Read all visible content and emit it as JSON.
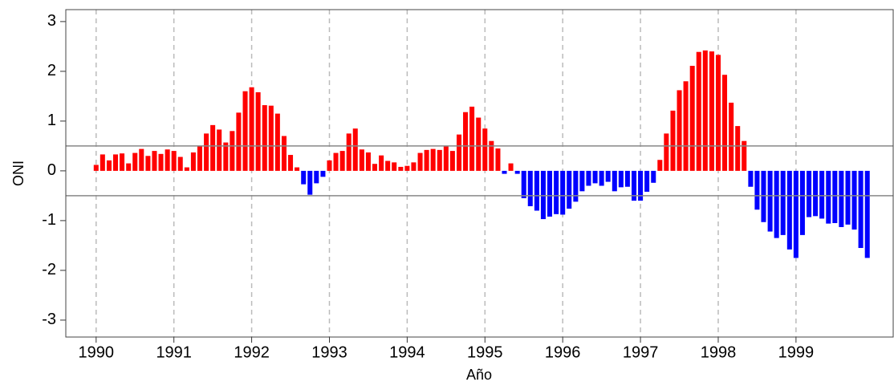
{
  "chart_data": {
    "type": "bar",
    "xlabel": "Año",
    "ylabel": "ONI",
    "x": [
      1990,
      1990.083,
      1990.167,
      1990.25,
      1990.333,
      1990.417,
      1990.5,
      1990.583,
      1990.667,
      1990.75,
      1990.833,
      1990.917,
      1991,
      1991.083,
      1991.167,
      1991.25,
      1991.333,
      1991.417,
      1991.5,
      1991.583,
      1991.667,
      1991.75,
      1991.833,
      1991.917,
      1992,
      1992.083,
      1992.167,
      1992.25,
      1992.333,
      1992.417,
      1992.5,
      1992.583,
      1992.667,
      1992.75,
      1992.833,
      1992.917,
      1993,
      1993.083,
      1993.167,
      1993.25,
      1993.333,
      1993.417,
      1993.5,
      1993.583,
      1993.667,
      1993.75,
      1993.833,
      1993.917,
      1994,
      1994.083,
      1994.167,
      1994.25,
      1994.333,
      1994.417,
      1994.5,
      1994.583,
      1994.667,
      1994.75,
      1994.833,
      1994.917,
      1995,
      1995.083,
      1995.167,
      1995.25,
      1995.333,
      1995.417,
      1995.5,
      1995.583,
      1995.667,
      1995.75,
      1995.833,
      1995.917,
      1996,
      1996.083,
      1996.167,
      1996.25,
      1996.333,
      1996.417,
      1996.5,
      1996.583,
      1996.667,
      1996.75,
      1996.833,
      1996.917,
      1997,
      1997.083,
      1997.167,
      1997.25,
      1997.333,
      1997.417,
      1997.5,
      1997.583,
      1997.667,
      1997.75,
      1997.833,
      1997.917,
      1998,
      1998.083,
      1998.167,
      1998.25,
      1998.333,
      1998.417,
      1998.5,
      1998.583,
      1998.667,
      1998.75,
      1998.833,
      1998.917,
      1999,
      1999.083,
      1999.167,
      1999.25,
      1999.333,
      1999.417,
      1999.5,
      1999.583,
      1999.667,
      1999.75,
      1999.833,
      1999.917
    ],
    "values": [
      0.12,
      0.33,
      0.21,
      0.33,
      0.35,
      0.15,
      0.36,
      0.44,
      0.3,
      0.4,
      0.34,
      0.43,
      0.4,
      0.28,
      0.07,
      0.37,
      0.5,
      0.75,
      0.92,
      0.83,
      0.57,
      0.8,
      1.17,
      1.6,
      1.68,
      1.58,
      1.32,
      1.31,
      1.15,
      0.7,
      0.32,
      0.07,
      -0.27,
      -0.48,
      -0.25,
      -0.12,
      0.21,
      0.36,
      0.4,
      0.75,
      0.85,
      0.43,
      0.37,
      0.14,
      0.31,
      0.2,
      0.17,
      0.08,
      0.1,
      0.17,
      0.36,
      0.42,
      0.44,
      0.42,
      0.5,
      0.4,
      0.73,
      1.18,
      1.29,
      1.07,
      0.85,
      0.6,
      0.45,
      -0.06,
      0.15,
      -0.06,
      -0.55,
      -0.71,
      -0.8,
      -0.97,
      -0.92,
      -0.87,
      -0.88,
      -0.76,
      -0.62,
      -0.41,
      -0.3,
      -0.25,
      -0.3,
      -0.22,
      -0.41,
      -0.33,
      -0.32,
      -0.6,
      -0.6,
      -0.42,
      -0.24,
      0.22,
      0.75,
      1.21,
      1.62,
      1.8,
      2.11,
      2.39,
      2.42,
      2.4,
      2.33,
      1.93,
      1.37,
      0.9,
      0.6,
      -0.32,
      -0.78,
      -1.03,
      -1.22,
      -1.35,
      -1.29,
      -1.58,
      -1.75,
      -1.29,
      -0.93,
      -0.91,
      -0.96,
      -1.06,
      -1.05,
      -1.13,
      -1.08,
      -1.18,
      -1.55,
      -1.75
    ],
    "positive_color": "#ff0000",
    "negative_color": "#0000ff",
    "hlines": [
      0.5,
      -0.5
    ],
    "xlim": [
      1989.61,
      2000.25
    ],
    "xticks": [
      1990,
      1991,
      1992,
      1993,
      1994,
      1995,
      1996,
      1997,
      1998,
      1999
    ],
    "ylim": [
      -3.34,
      3.24
    ],
    "yticks": [
      -3,
      -2,
      -1,
      0,
      1,
      2,
      3
    ],
    "grid": true
  }
}
